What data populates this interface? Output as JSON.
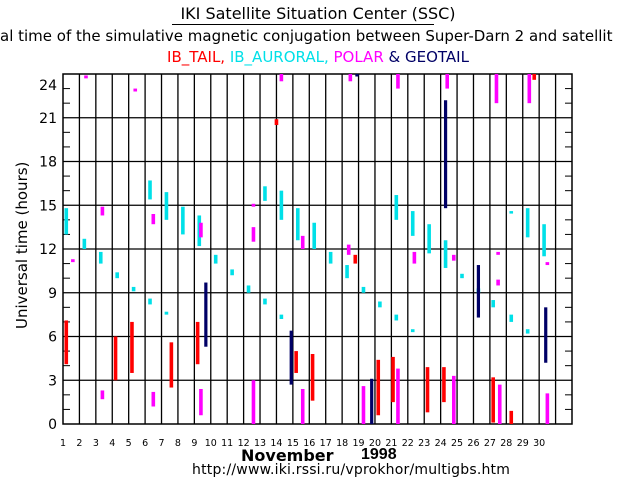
{
  "header": {
    "title": "IKI Satellite Situation Center (SSC)",
    "subtitle": "al time of the simulative magnetic conjugation between Super-Darn 2 and satellit",
    "legend": [
      {
        "label": "IB_TAIL,",
        "color": "#ff0000"
      },
      {
        "label": " IB_AURORAL,",
        "color": "#00e0e8"
      },
      {
        "label": " POLAR",
        "color": "#ff00ff"
      },
      {
        "label": " & GEOTAIL",
        "color": "#000066"
      }
    ]
  },
  "footer": {
    "month": "November",
    "year": "1998",
    "url": "http://www.iki.rssi.ru/vprokhor/multigbs.htm"
  },
  "chart_data": {
    "type": "scatter",
    "title": "IKI Satellite Situation Center (SSC)",
    "xlabel": "November 1998",
    "ylabel": "Universal time (hours)",
    "xlim": [
      1,
      32
    ],
    "ylim": [
      0,
      24
    ],
    "grid": true,
    "x_ticks": [
      1,
      2,
      3,
      4,
      5,
      6,
      7,
      8,
      9,
      10,
      11,
      12,
      13,
      14,
      15,
      16,
      17,
      18,
      19,
      20,
      21,
      22,
      23,
      24,
      25,
      26,
      27,
      28,
      29,
      30
    ],
    "y_ticks": [
      0,
      3,
      6,
      9,
      12,
      15,
      18,
      21,
      24
    ],
    "series_colors": {
      "IB_TAIL": "#ff0000",
      "IB_AURORAL": "#00e0e8",
      "POLAR": "#ff00ff",
      "GEOTAIL": "#000066"
    },
    "series": [
      {
        "name": "IB_TAIL",
        "segments": [
          [
            1.2,
            4.1,
            7.1
          ],
          [
            4.2,
            3.0,
            6.0
          ],
          [
            5.2,
            3.5,
            7.0
          ],
          [
            7.6,
            2.5,
            5.6
          ],
          [
            9.2,
            4.1,
            7.0
          ],
          [
            14.0,
            20.5,
            20.9
          ],
          [
            15.2,
            3.5,
            5.0
          ],
          [
            16.2,
            1.6,
            4.8
          ],
          [
            18.8,
            11.0,
            11.6
          ],
          [
            20.2,
            0.6,
            4.4
          ],
          [
            21.1,
            1.5,
            4.6
          ],
          [
            23.2,
            0.8,
            3.9
          ],
          [
            24.2,
            1.5,
            3.9
          ],
          [
            27.2,
            0.1,
            3.2
          ],
          [
            28.3,
            0.0,
            0.9
          ],
          [
            29.7,
            23.6,
            24.0
          ]
        ]
      },
      {
        "name": "IB_AURORAL",
        "segments": [
          [
            1.2,
            13.0,
            14.8
          ],
          [
            2.3,
            12.0,
            12.7
          ],
          [
            3.3,
            11.0,
            11.8
          ],
          [
            4.3,
            10.0,
            10.4
          ],
          [
            5.3,
            9.1,
            9.4
          ],
          [
            6.3,
            8.2,
            8.6
          ],
          [
            6.3,
            15.4,
            16.7
          ],
          [
            7.3,
            7.5,
            7.7
          ],
          [
            7.3,
            14.0,
            15.9
          ],
          [
            8.3,
            13.0,
            14.9
          ],
          [
            9.3,
            12.2,
            14.3
          ],
          [
            10.3,
            11.0,
            11.6
          ],
          [
            11.3,
            10.2,
            10.6
          ],
          [
            12.3,
            9.0,
            9.5
          ],
          [
            13.3,
            8.2,
            8.6
          ],
          [
            13.3,
            15.3,
            16.3
          ],
          [
            14.3,
            7.2,
            7.5
          ],
          [
            14.3,
            14.0,
            16.0
          ],
          [
            15.3,
            12.6,
            14.8
          ],
          [
            16.3,
            12.0,
            13.8
          ],
          [
            17.3,
            11.0,
            11.8
          ],
          [
            18.3,
            10.0,
            10.9
          ],
          [
            19.3,
            9.0,
            9.4
          ],
          [
            20.3,
            8.0,
            8.4
          ],
          [
            21.3,
            7.1,
            7.5
          ],
          [
            21.3,
            14.0,
            15.7
          ],
          [
            22.3,
            6.3,
            6.5
          ],
          [
            22.3,
            12.9,
            14.6
          ],
          [
            23.3,
            11.7,
            13.7
          ],
          [
            24.3,
            10.7,
            12.6
          ],
          [
            25.3,
            10.0,
            10.3
          ],
          [
            26.3,
            9.0,
            9.3
          ],
          [
            27.2,
            8.0,
            8.5
          ],
          [
            28.3,
            7.0,
            7.5
          ],
          [
            28.3,
            14.5,
            14.6
          ],
          [
            29.3,
            6.2,
            6.5
          ],
          [
            29.3,
            12.8,
            14.8
          ],
          [
            30.3,
            11.5,
            13.7
          ]
        ]
      },
      {
        "name": "POLAR",
        "segments": [
          [
            1.6,
            11.1,
            11.3
          ],
          [
            2.4,
            23.7,
            23.9
          ],
          [
            3.4,
            14.3,
            14.9
          ],
          [
            3.4,
            1.7,
            2.3
          ],
          [
            5.4,
            22.8,
            23.0
          ],
          [
            6.5,
            13.7,
            14.4
          ],
          [
            6.5,
            1.2,
            2.2
          ],
          [
            9.4,
            0.6,
            2.4
          ],
          [
            9.4,
            12.8,
            13.8
          ],
          [
            12.6,
            0.0,
            3.0
          ],
          [
            12.6,
            12.5,
            13.5
          ],
          [
            12.6,
            14.9,
            15.1
          ],
          [
            14.3,
            24.0,
            23.5
          ],
          [
            15.6,
            12.0,
            12.9
          ],
          [
            15.6,
            0.0,
            2.4
          ],
          [
            18.4,
            11.6,
            12.3
          ],
          [
            18.5,
            23.5,
            24.0
          ],
          [
            19.3,
            0.0,
            2.6
          ],
          [
            21.4,
            23.0,
            24.0
          ],
          [
            21.4,
            0.0,
            3.8
          ],
          [
            22.4,
            11.0,
            11.8
          ],
          [
            24.4,
            23.0,
            24.0
          ],
          [
            24.8,
            11.2,
            11.6
          ],
          [
            24.8,
            0.0,
            3.3
          ],
          [
            27.4,
            22.0,
            24.0
          ],
          [
            27.5,
            11.6,
            11.8
          ],
          [
            27.5,
            9.5,
            9.9
          ],
          [
            27.6,
            0.0,
            2.7
          ],
          [
            29.4,
            22.0,
            24.0
          ],
          [
            30.5,
            10.9,
            11.1
          ],
          [
            30.5,
            0.0,
            2.1
          ]
        ]
      },
      {
        "name": "GEOTAIL",
        "segments": [
          [
            9.7,
            5.3,
            9.7
          ],
          [
            14.9,
            2.7,
            6.4
          ],
          [
            18.9,
            23.9,
            24.0
          ],
          [
            19.8,
            0.0,
            3.1
          ],
          [
            24.3,
            14.8,
            22.2
          ],
          [
            26.3,
            7.3,
            10.9
          ],
          [
            30.4,
            4.2,
            8.0
          ]
        ]
      }
    ]
  }
}
